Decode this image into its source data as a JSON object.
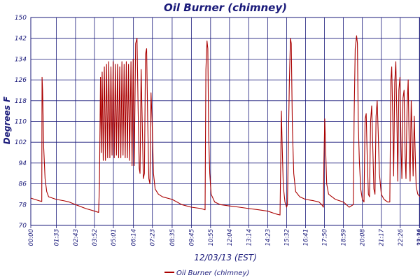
{
  "chart_data": {
    "type": "line",
    "title": "Oil Burner (chimney)",
    "xlabel": "12/03/13 (EST)",
    "ylabel": "Degrees F",
    "ylim": [
      70,
      150
    ],
    "y_ticks": [
      "70",
      "78",
      "86",
      "94",
      "102",
      "110",
      "118",
      "126",
      "134",
      "142",
      "150"
    ],
    "x_ticks": [
      "00:00",
      "01:33",
      "02:43",
      "03:52",
      "05:01",
      "06:14",
      "07:23",
      "08:35",
      "09:45",
      "10:55",
      "12:04",
      "13:14",
      "14:23",
      "15:32",
      "16:41",
      "17:50",
      "18:59",
      "20:08",
      "21:17",
      "22:26",
      "23:36",
      "23:38"
    ],
    "grid": true,
    "legend": {
      "position": "bottom",
      "entries": [
        "Oil Burner (chimney)"
      ]
    },
    "colors": {
      "series": "#aa0000",
      "grid": "#1a1a7a",
      "text": "#1a1a7a"
    },
    "series": [
      {
        "name": "Oil Burner (chimney)",
        "points": [
          [
            "00:00",
            80.5
          ],
          [
            "00:30",
            79.5
          ],
          [
            "00:40",
            79.2
          ],
          [
            "00:41",
            127
          ],
          [
            "00:43",
            122
          ],
          [
            "00:47",
            100
          ],
          [
            "00:52",
            88
          ],
          [
            "00:58",
            83
          ],
          [
            "01:05",
            81
          ],
          [
            "01:33",
            80
          ],
          [
            "02:00",
            79.5
          ],
          [
            "02:20",
            79
          ],
          [
            "02:43",
            78
          ],
          [
            "03:20",
            76.5
          ],
          [
            "03:52",
            75.5
          ],
          [
            "04:07",
            75
          ],
          [
            "04:10",
            85
          ],
          [
            "04:14",
            127
          ],
          [
            "04:17",
            98
          ],
          [
            "04:20",
            129
          ],
          [
            "04:24",
            95
          ],
          [
            "04:28",
            131
          ],
          [
            "04:32",
            95
          ],
          [
            "04:36",
            132
          ],
          [
            "04:40",
            96
          ],
          [
            "04:44",
            133
          ],
          [
            "04:48",
            96
          ],
          [
            "04:52",
            131
          ],
          [
            "04:56",
            97
          ],
          [
            "05:00",
            133
          ],
          [
            "05:04",
            96
          ],
          [
            "05:08",
            132
          ],
          [
            "05:12",
            97
          ],
          [
            "05:16",
            132
          ],
          [
            "05:20",
            96
          ],
          [
            "05:24",
            131
          ],
          [
            "05:28",
            96
          ],
          [
            "05:32",
            133
          ],
          [
            "05:36",
            97
          ],
          [
            "05:40",
            132
          ],
          [
            "05:44",
            96
          ],
          [
            "05:48",
            133
          ],
          [
            "05:52",
            96
          ],
          [
            "05:56",
            132
          ],
          [
            "06:00",
            95
          ],
          [
            "06:05",
            133
          ],
          [
            "06:09",
            93
          ],
          [
            "06:13",
            134
          ],
          [
            "06:17",
            93
          ],
          [
            "06:22",
            140
          ],
          [
            "06:27",
            142
          ],
          [
            "06:31",
            115
          ],
          [
            "06:35",
            92
          ],
          [
            "06:38",
            90
          ],
          [
            "06:42",
            130
          ],
          [
            "06:46",
            110
          ],
          [
            "06:50",
            88
          ],
          [
            "06:54",
            90
          ],
          [
            "06:58",
            136
          ],
          [
            "07:02",
            138
          ],
          [
            "07:06",
            110
          ],
          [
            "07:10",
            88
          ],
          [
            "07:14",
            86
          ],
          [
            "07:18",
            121
          ],
          [
            "07:22",
            110
          ],
          [
            "07:27",
            90
          ],
          [
            "07:33",
            84
          ],
          [
            "07:45",
            82
          ],
          [
            "08:00",
            81
          ],
          [
            "08:35",
            80
          ],
          [
            "09:10",
            78
          ],
          [
            "09:45",
            77
          ],
          [
            "10:20",
            76.5
          ],
          [
            "10:35",
            76
          ],
          [
            "10:38",
            130
          ],
          [
            "10:42",
            141
          ],
          [
            "10:45",
            138
          ],
          [
            "10:48",
            105
          ],
          [
            "10:52",
            90
          ],
          [
            "10:57",
            82
          ],
          [
            "11:10",
            79
          ],
          [
            "11:30",
            78
          ],
          [
            "12:04",
            77.5
          ],
          [
            "12:40",
            77
          ],
          [
            "13:14",
            76.5
          ],
          [
            "13:50",
            76
          ],
          [
            "14:23",
            75.5
          ],
          [
            "14:50",
            74.5
          ],
          [
            "15:08",
            74
          ],
          [
            "15:10",
            90
          ],
          [
            "15:13",
            114
          ],
          [
            "15:16",
            100
          ],
          [
            "15:20",
            85
          ],
          [
            "15:26",
            79
          ],
          [
            "15:32",
            77
          ],
          [
            "15:35",
            78
          ],
          [
            "15:42",
            125
          ],
          [
            "15:46",
            142
          ],
          [
            "15:49",
            140
          ],
          [
            "15:53",
            108
          ],
          [
            "15:58",
            90
          ],
          [
            "16:05",
            83
          ],
          [
            "16:20",
            81
          ],
          [
            "16:41",
            80
          ],
          [
            "17:10",
            79.5
          ],
          [
            "17:30",
            79
          ],
          [
            "17:40",
            78
          ],
          [
            "17:46",
            77
          ],
          [
            "17:48",
            95
          ],
          [
            "17:51",
            111
          ],
          [
            "17:54",
            100
          ],
          [
            "17:58",
            86
          ],
          [
            "18:05",
            82
          ],
          [
            "18:30",
            80
          ],
          [
            "18:59",
            79
          ],
          [
            "19:20",
            77
          ],
          [
            "19:35",
            78
          ],
          [
            "19:38",
            112
          ],
          [
            "19:42",
            138
          ],
          [
            "19:47",
            143
          ],
          [
            "19:50",
            140
          ],
          [
            "19:53",
            110
          ],
          [
            "19:57",
            95
          ],
          [
            "20:02",
            84
          ],
          [
            "20:08",
            80
          ],
          [
            "20:14",
            79
          ],
          [
            "20:18",
            111
          ],
          [
            "20:22",
            113
          ],
          [
            "20:26",
            95
          ],
          [
            "20:30",
            82
          ],
          [
            "20:34",
            81
          ],
          [
            "20:38",
            110
          ],
          [
            "20:42",
            116
          ],
          [
            "20:46",
            100
          ],
          [
            "20:50",
            84
          ],
          [
            "20:54",
            82
          ],
          [
            "20:58",
            112
          ],
          [
            "21:02",
            118
          ],
          [
            "21:06",
            105
          ],
          [
            "21:10",
            90
          ],
          [
            "21:17",
            82
          ],
          [
            "21:27",
            80
          ],
          [
            "21:40",
            79
          ],
          [
            "21:48",
            79
          ],
          [
            "21:52",
            126
          ],
          [
            "21:55",
            131
          ],
          [
            "21:59",
            110
          ],
          [
            "22:02",
            89
          ],
          [
            "22:06",
            125
          ],
          [
            "22:10",
            133
          ],
          [
            "22:14",
            110
          ],
          [
            "22:17",
            87
          ],
          [
            "22:21",
            122
          ],
          [
            "22:25",
            127
          ],
          [
            "22:29",
            100
          ],
          [
            "22:32",
            88
          ],
          [
            "22:36",
            119
          ],
          [
            "22:40",
            122
          ],
          [
            "22:44",
            96
          ],
          [
            "22:47",
            88
          ],
          [
            "22:51",
            116
          ],
          [
            "22:55",
            126
          ],
          [
            "22:59",
            98
          ],
          [
            "23:02",
            87
          ],
          [
            "23:06",
            118
          ],
          [
            "23:09",
            106
          ],
          [
            "23:13",
            89
          ],
          [
            "23:17",
            112
          ],
          [
            "23:20",
            100
          ],
          [
            "23:24",
            85
          ],
          [
            "23:30",
            82
          ],
          [
            "23:38",
            81
          ]
        ]
      }
    ]
  }
}
